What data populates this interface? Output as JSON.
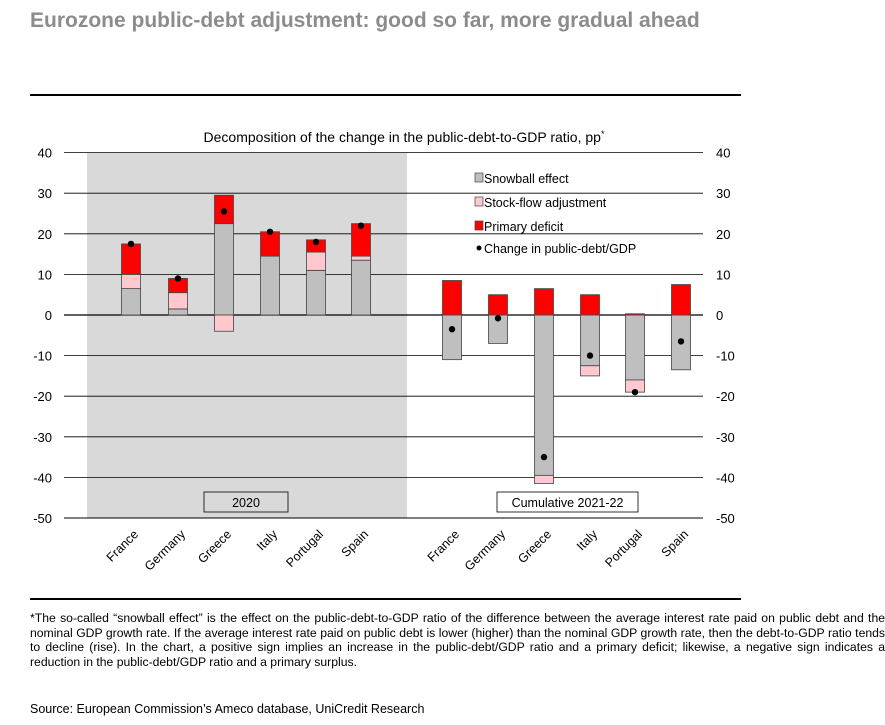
{
  "page": {
    "title": "Eurozone public-debt adjustment: good so far, more gradual ahead",
    "footnote": "*The so-called “snowball effect” is the effect on the public-debt-to-GDP ratio of the difference between the average interest rate paid on public debt and the nominal GDP growth rate. If the average interest rate paid on public debt is lower (higher) than the nominal GDP growth rate, then the debt-to-GDP ratio tends to decline (rise). In the chart, a positive sign implies an increase in the public-debt/GDP ratio and a primary deficit; likewise, a negative sign indicates a reduction in the public-debt/GDP ratio and a primary surplus.",
    "source": "Source: European Commission’s Ameco database, UniCredit Research"
  },
  "chart_data": {
    "type": "bar",
    "stacked": true,
    "title": "Decomposition of the change in the public-debt-to-GDP ratio, pp",
    "title_marker": "*",
    "ylim": [
      -50,
      40
    ],
    "yticks": [
      -50,
      -40,
      -30,
      -20,
      -10,
      0,
      10,
      20,
      30,
      40
    ],
    "grid": true,
    "legend_position": "top-right",
    "groups": [
      {
        "label": "2020",
        "shaded": true,
        "categories": [
          "France",
          "Germany",
          "Greece",
          "Italy",
          "Portugal",
          "Spain"
        ]
      },
      {
        "label": "Cumulative 2021-22",
        "shaded": false,
        "categories": [
          "France",
          "Germany",
          "Greece",
          "Italy",
          "Portugal",
          "Spain"
        ]
      }
    ],
    "series": [
      {
        "name": "Snowball effect",
        "color": "#bfbfbf",
        "values": [
          6.5,
          1.5,
          22.5,
          14.5,
          11,
          13.5,
          -11,
          -7,
          -39.5,
          -12.5,
          -16,
          -13.5
        ]
      },
      {
        "name": "Stock-flow adjustment",
        "color": "#ffc7ce",
        "values": [
          3.5,
          4,
          -4,
          0,
          4.5,
          1,
          0,
          0,
          -2,
          -2.5,
          -3,
          0
        ]
      },
      {
        "name": "Primary deficit",
        "color": "#ff0000",
        "values": [
          7.5,
          3.5,
          7,
          6,
          3,
          8,
          8.5,
          5,
          6.5,
          5,
          0.3,
          7.5
        ]
      },
      {
        "name": "Change in public-debt/GDP",
        "type": "marker",
        "color": "#000000",
        "values": [
          17.5,
          9,
          25.5,
          20.5,
          18,
          22,
          -3.5,
          -0.8,
          -35,
          -10,
          -19,
          -6.5
        ]
      }
    ]
  }
}
